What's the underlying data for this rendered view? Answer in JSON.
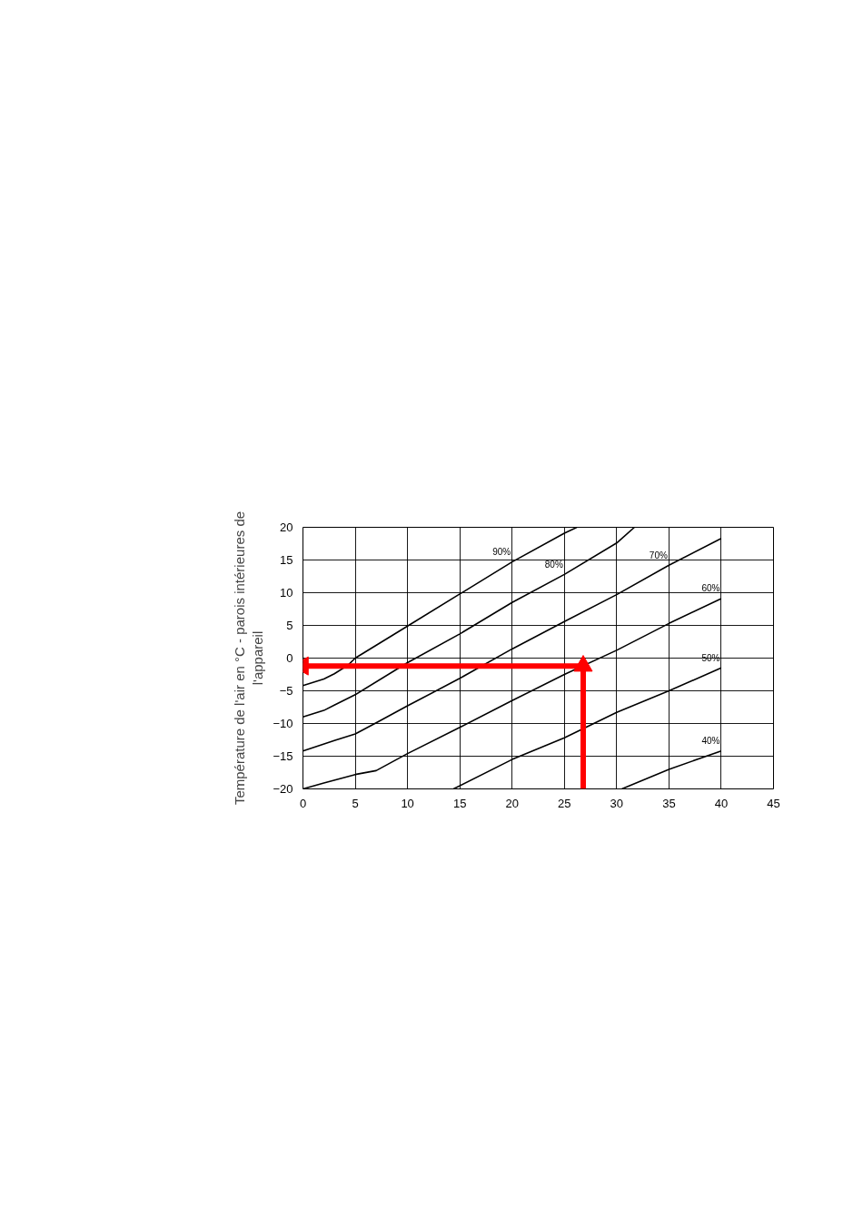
{
  "chart_data": {
    "type": "line",
    "ylabel": "Température de l'air en °C - parois intérieures de\nl'appareil",
    "xlim": [
      0,
      45
    ],
    "ylim": [
      -20,
      20
    ],
    "xticks": [
      0,
      5,
      10,
      15,
      20,
      25,
      30,
      35,
      40,
      45
    ],
    "yticks": [
      -20,
      -15,
      -10,
      -5,
      0,
      5,
      10,
      15,
      20
    ],
    "grid": true,
    "series": [
      {
        "name": "90%",
        "color": "#000000",
        "x": [
          0,
          2,
          3,
          4.3,
          5,
          10,
          15,
          20,
          25,
          26.2
        ],
        "values": [
          -4.2,
          -3.2,
          -2.4,
          -1.1,
          0,
          4.9,
          9.8,
          14.7,
          19.1,
          20
        ]
      },
      {
        "name": "80%",
        "color": "#000000",
        "x": [
          0,
          2,
          3,
          5,
          10,
          15,
          20,
          25,
          30,
          31.7
        ],
        "values": [
          -9,
          -8,
          -7.2,
          -5.6,
          -0.7,
          3.7,
          8.5,
          12.8,
          17.6,
          20
        ]
      },
      {
        "name": "70%",
        "color": "#000000",
        "x": [
          0,
          3,
          5,
          7,
          10,
          15,
          20,
          25,
          30,
          35,
          40
        ],
        "values": [
          -14.2,
          -12.6,
          -11.6,
          -9.9,
          -7.3,
          -3.1,
          1.4,
          5.6,
          9.7,
          14.2,
          18.3
        ]
      },
      {
        "name": "60%",
        "color": "#000000",
        "x": [
          0,
          2,
          5,
          7,
          10,
          15,
          20,
          25,
          30,
          35,
          40
        ],
        "values": [
          -20,
          -19.1,
          -17.8,
          -17.2,
          -14.6,
          -10.6,
          -6.5,
          -2.5,
          1.2,
          5.3,
          9.1
        ]
      },
      {
        "name": "50%",
        "color": "#000000",
        "x": [
          14.4,
          20,
          25,
          30,
          35,
          40
        ],
        "values": [
          -20,
          -15.5,
          -12.2,
          -8.3,
          -5,
          -1.5
        ]
      },
      {
        "name": "40%",
        "color": "#000000",
        "x": [
          30.5,
          35,
          40
        ],
        "values": [
          -20,
          -17,
          -14.2
        ]
      },
      {
        "color": "#ff0000",
        "marker": "triangle",
        "x": [
          26.8,
          26.8,
          0
        ],
        "values": [
          -20,
          -1.2,
          -1.2
        ]
      }
    ]
  }
}
